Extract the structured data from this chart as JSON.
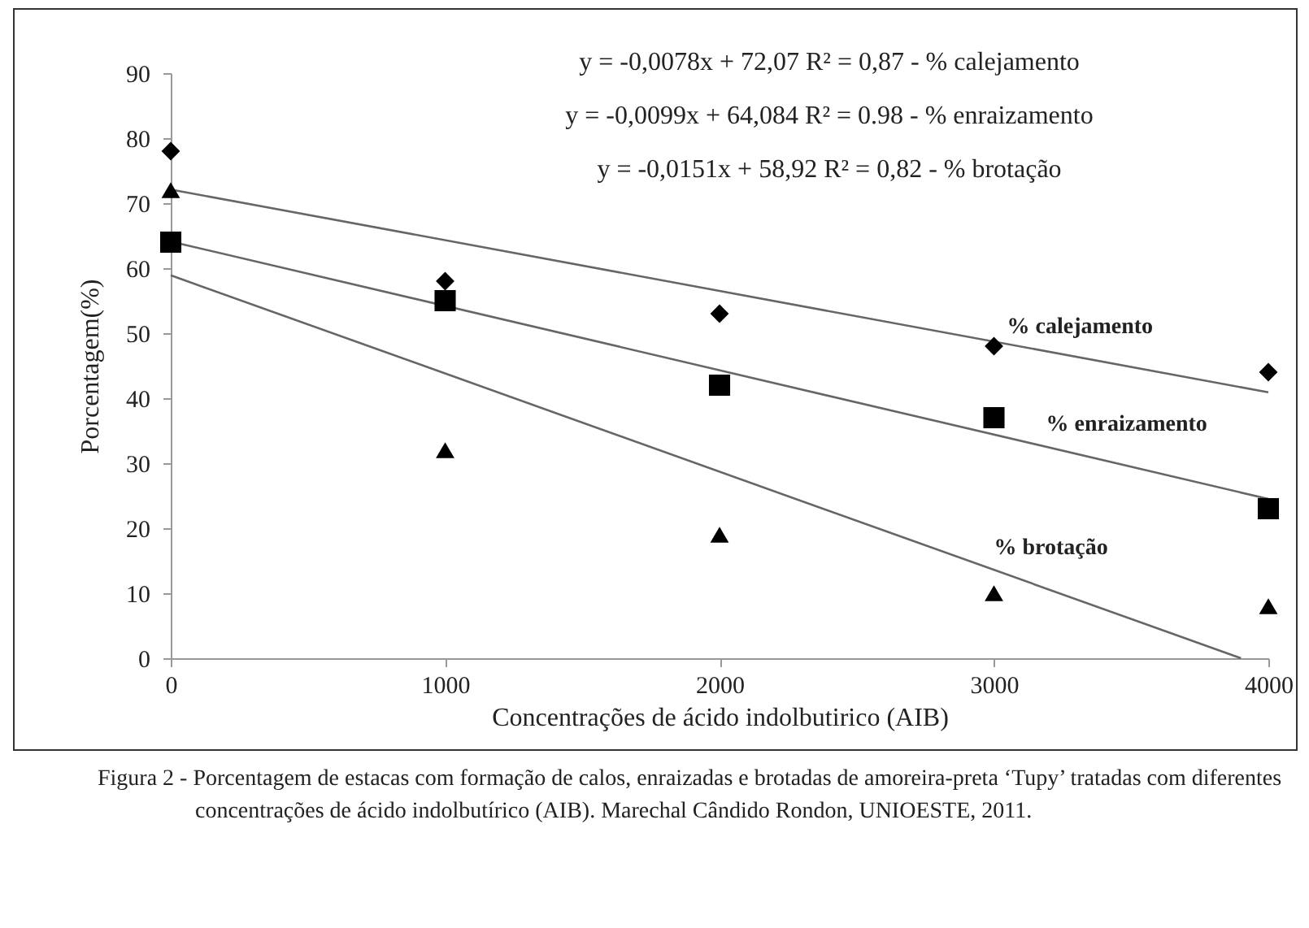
{
  "chart_data": {
    "type": "scatter",
    "xlabel": "Concentrações de ácido indolbutirico (AIB)",
    "ylabel": "Porcentagem(%)",
    "xlim": [
      0,
      4000
    ],
    "xticks": [
      0,
      1000,
      2000,
      3000,
      4000
    ],
    "ylim": [
      0,
      90
    ],
    "yticks": [
      0,
      10,
      20,
      30,
      40,
      50,
      60,
      70,
      80,
      90
    ],
    "grid": false,
    "series": [
      {
        "type": "line",
        "color": "#666666",
        "line_style": "solid",
        "marker": "none",
        "x": [
          0,
          4000
        ],
        "values": [
          72.1,
          40.9
        ]
      },
      {
        "type": "line",
        "color": "#666666",
        "line_style": "solid",
        "marker": "none",
        "x": [
          0,
          4000
        ],
        "values": [
          64.1,
          24.5
        ]
      },
      {
        "type": "line",
        "color": "#666666",
        "line_style": "solid",
        "marker": "none",
        "x": [
          0,
          3900
        ],
        "values": [
          58.9,
          0
        ]
      },
      {
        "name": "% calejamento",
        "color": "#000000",
        "marker": "diamond",
        "x": [
          0,
          1000,
          2000,
          3000,
          4000
        ],
        "values": [
          78,
          58,
          53,
          48,
          44
        ]
      },
      {
        "name": "% enraizamento",
        "color": "#000000",
        "marker": "square",
        "x": [
          0,
          1000,
          2000,
          3000,
          4000
        ],
        "values": [
          64,
          55,
          42,
          37,
          23
        ]
      },
      {
        "name": "% brotação",
        "color": "#000000",
        "marker": "triangle",
        "x": [
          0,
          1000,
          2000,
          3000,
          4000
        ],
        "values": [
          72,
          32,
          19,
          10,
          8
        ]
      }
    ],
    "annotations": [
      "y = -0,0078x + 72,07  R² = 0,87 - % calejamento",
      "y = -0,0099x + 64,084  R² = 0.98 - % enraizamento",
      "y = -0,0151x + 58,92  R² = 0,82 - % brotação",
      "Figura 2 - Porcentagem de estacas com formação de calos, enraizadas e brotadas de amoreira-preta ‘Tupy’ tratadas com diferentes concentrações de ácido indolbutírico (AIB). Marechal Cândido Rondon, UNIOESTE, 2011."
    ]
  }
}
